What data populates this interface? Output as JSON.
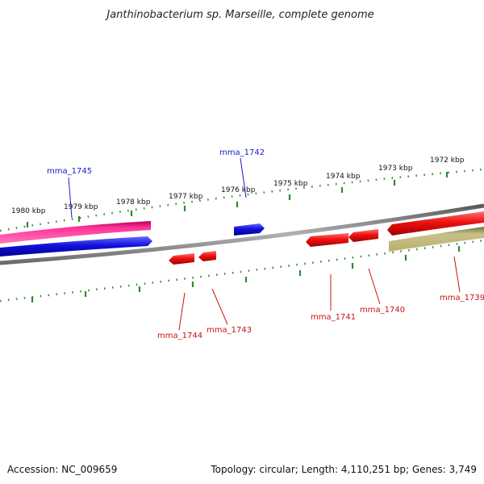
{
  "title": "Janthinobacterium sp. Marseille, complete genome",
  "footer": {
    "accession": "Accession: NC_009659",
    "summary": "Topology: circular; Length: 4,110,251 bp; Genes: 3,749"
  },
  "colors": {
    "backbone": "#8a8a8a",
    "tick": "#2e8b2e",
    "forward_label": "#1a1acc",
    "reverse_label": "#cc1111",
    "gene_red": "#ee1111",
    "gene_blue": "#1111dd",
    "gene_pink": "#ff3399",
    "gene_khaki": "#b8b070"
  },
  "scale_labels": [
    "1980 kbp",
    "1979 kbp",
    "1978 kbp",
    "1977 kbp",
    "1976 kbp",
    "1975 kbp",
    "1974 kbp",
    "1973 kbp",
    "1972 kbp"
  ],
  "genes": [
    {
      "label": "mma_1745",
      "strand": "forward",
      "color": "blue"
    },
    {
      "label": "mma_1742",
      "strand": "forward",
      "color": "blue"
    },
    {
      "label": "mma_1744",
      "strand": "reverse",
      "color": "red"
    },
    {
      "label": "mma_1743",
      "strand": "reverse",
      "color": "red"
    },
    {
      "label": "mma_1741",
      "strand": "reverse",
      "color": "red"
    },
    {
      "label": "mma_1740",
      "strand": "reverse",
      "color": "red"
    },
    {
      "label": "mma_1739",
      "strand": "reverse",
      "color": "khaki"
    }
  ]
}
